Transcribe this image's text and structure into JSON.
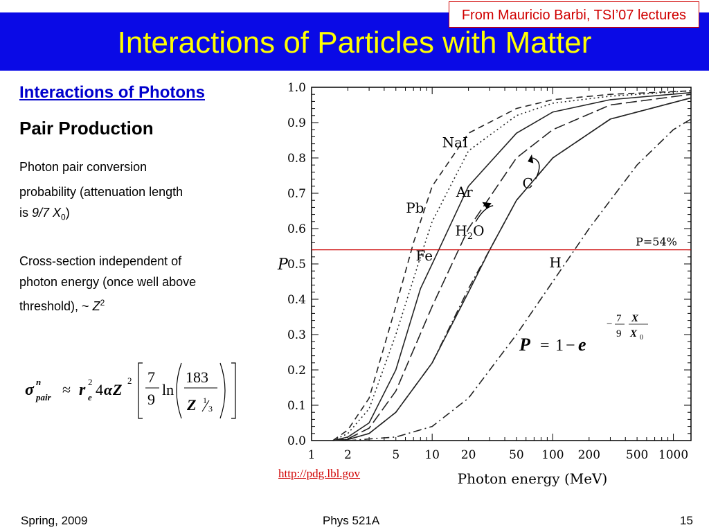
{
  "slide": {
    "title": "Interactions of Particles with Matter",
    "credit": "From Mauricio Barbi, TSI’07 lectures",
    "subheading": "Interactions of Photons",
    "section": "Pair Production",
    "para1_a": "Photon pair conversion",
    "para1_b": "probability (attenuation length",
    "para1_c_pre": "is ",
    "para1_c_frac": "9/7 X",
    "para1_c_sub": "0",
    "para1_c_post": ")",
    "para2_a": "Cross-section independent of",
    "para2_b": "photon energy (once well above",
    "para2_c_pre": "threshold), ~ ",
    "para2_c_z": "Z",
    "para2_c_sup": "2",
    "link": "http://pdg.lbl.gov"
  },
  "formula_sigma": {
    "sigma": "σ",
    "sup_n": "n",
    "sub_pair": "pair",
    "approx": "≈",
    "r": "r",
    "sup2": "2",
    "sub_e": "e",
    "four": "4",
    "alpha": "α",
    "Z": "Z",
    "sup2b": "2",
    "seven": "7",
    "nine": "9",
    "ln": "ln",
    "num183": "183",
    "Zb": "Z",
    "one": "1",
    "three": "3"
  },
  "formula_P": {
    "P": "P",
    "eq": "=",
    "one": "1",
    "minus": "−",
    "e": "e",
    "exp_minus": "−",
    "seven": "7",
    "nine": "9",
    "X": "X",
    "X0": "X",
    "sub0": "0"
  },
  "footer": {
    "left": "Spring, 2009",
    "center": "Phys 521A",
    "right": "15"
  },
  "chart_data": {
    "type": "line",
    "xscale": "log",
    "xlim": [
      1,
      1400
    ],
    "ylim": [
      0,
      1.0
    ],
    "xlabel": "Photon energy (MeV)",
    "ylabel": "P",
    "x_ticks": [
      1,
      2,
      5,
      10,
      20,
      50,
      100,
      200,
      500,
      1000
    ],
    "y_ticks": [
      "0.0",
      "0.1",
      "0.2",
      "0.3",
      "0.4",
      "0.5",
      "0.6",
      "0.7",
      "0.8",
      "0.9",
      "1.0"
    ],
    "reference_line": {
      "y": 0.54,
      "label": "P=54%"
    },
    "series": [
      {
        "name": "Pb",
        "style": "dashed",
        "points": [
          [
            1.5,
            0
          ],
          [
            2,
            0.03
          ],
          [
            3,
            0.12
          ],
          [
            5,
            0.38
          ],
          [
            7,
            0.56
          ],
          [
            10,
            0.72
          ],
          [
            20,
            0.87
          ],
          [
            50,
            0.94
          ],
          [
            100,
            0.965
          ],
          [
            300,
            0.98
          ],
          [
            1400,
            0.99
          ]
        ]
      },
      {
        "name": "NaI",
        "style": "dotted",
        "points": [
          [
            1.5,
            0
          ],
          [
            2,
            0.02
          ],
          [
            3,
            0.09
          ],
          [
            5,
            0.3
          ],
          [
            8,
            0.52
          ],
          [
            10,
            0.62
          ],
          [
            20,
            0.82
          ],
          [
            50,
            0.92
          ],
          [
            100,
            0.955
          ],
          [
            300,
            0.975
          ],
          [
            1400,
            0.99
          ]
        ]
      },
      {
        "name": "Fe",
        "style": "solid",
        "points": [
          [
            1.5,
            0
          ],
          [
            2,
            0.01
          ],
          [
            3,
            0.05
          ],
          [
            5,
            0.2
          ],
          [
            8,
            0.43
          ],
          [
            10,
            0.5
          ],
          [
            20,
            0.72
          ],
          [
            50,
            0.87
          ],
          [
            100,
            0.93
          ],
          [
            300,
            0.965
          ],
          [
            1400,
            0.985
          ]
        ]
      },
      {
        "name": "Ar",
        "style": "long-dashed",
        "points": [
          [
            1.5,
            0
          ],
          [
            2,
            0.005
          ],
          [
            3,
            0.035
          ],
          [
            5,
            0.14
          ],
          [
            10,
            0.38
          ],
          [
            20,
            0.6
          ],
          [
            50,
            0.8
          ],
          [
            100,
            0.88
          ],
          [
            300,
            0.95
          ],
          [
            1400,
            0.98
          ]
        ]
      },
      {
        "name": "H2O",
        "style": "dash-dot",
        "points": [
          [
            1.5,
            0
          ],
          [
            2,
            0.003
          ],
          [
            3,
            0.02
          ],
          [
            5,
            0.08
          ],
          [
            10,
            0.22
          ],
          [
            20,
            0.43
          ],
          [
            30,
            0.54
          ],
          [
            50,
            0.68
          ],
          [
            100,
            0.8
          ],
          [
            300,
            0.91
          ],
          [
            1400,
            0.97
          ]
        ]
      },
      {
        "name": "C",
        "style": "solid",
        "points": [
          [
            1.5,
            0
          ],
          [
            2,
            0.003
          ],
          [
            3,
            0.02
          ],
          [
            5,
            0.08
          ],
          [
            10,
            0.22
          ],
          [
            20,
            0.42
          ],
          [
            30,
            0.54
          ],
          [
            50,
            0.68
          ],
          [
            100,
            0.8
          ],
          [
            300,
            0.91
          ],
          [
            1400,
            0.97
          ]
        ]
      },
      {
        "name": "H",
        "style": "dash-dot",
        "points": [
          [
            2,
            0
          ],
          [
            5,
            0.01
          ],
          [
            10,
            0.04
          ],
          [
            20,
            0.12
          ],
          [
            50,
            0.3
          ],
          [
            100,
            0.45
          ],
          [
            200,
            0.6
          ],
          [
            300,
            0.68
          ],
          [
            500,
            0.78
          ],
          [
            1000,
            0.88
          ],
          [
            1400,
            0.91
          ]
        ]
      }
    ],
    "annotations": [
      "Pb",
      "NaI",
      "Fe",
      "Ar",
      "H2O",
      "C",
      "H"
    ]
  }
}
